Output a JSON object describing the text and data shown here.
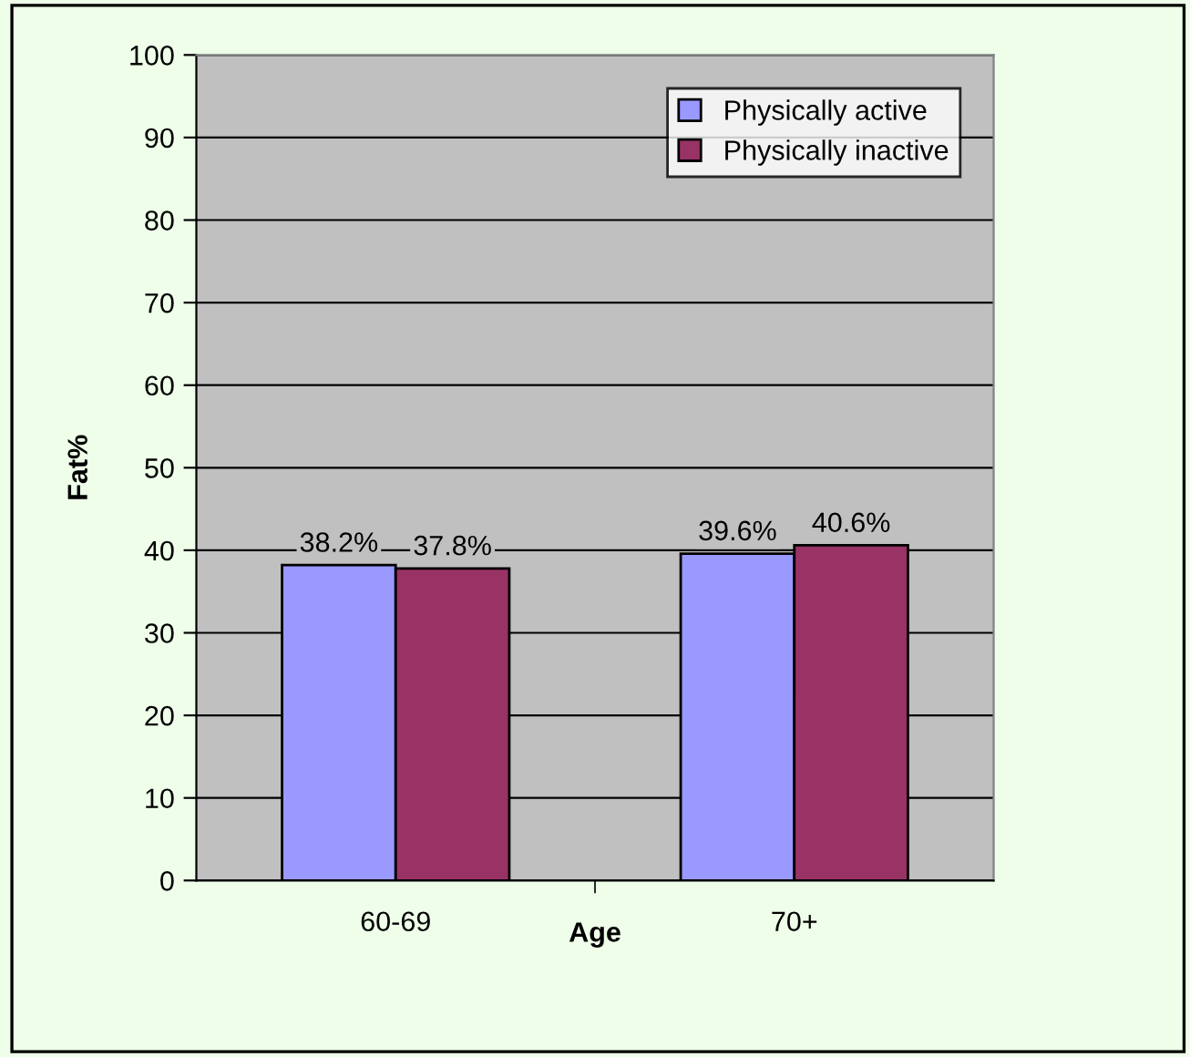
{
  "chart_data": {
    "type": "bar",
    "xlabel": "Age",
    "ylabel": "Fat%",
    "categories": [
      "60-69",
      "70+"
    ],
    "series": [
      {
        "name": "Physically active",
        "color": "#9999ff",
        "values": [
          38.2,
          39.6
        ],
        "value_labels": [
          "38.2%",
          "39.6%"
        ]
      },
      {
        "name": "Physically inactive",
        "color": "#993366",
        "values": [
          37.8,
          40.6
        ],
        "value_labels": [
          "37.8%",
          "40.6%"
        ]
      }
    ],
    "ylim": [
      0,
      100
    ],
    "yticks": [
      0,
      10,
      20,
      30,
      40,
      50,
      60,
      70,
      80,
      90,
      100
    ],
    "grid": "y",
    "legend": "top right"
  }
}
